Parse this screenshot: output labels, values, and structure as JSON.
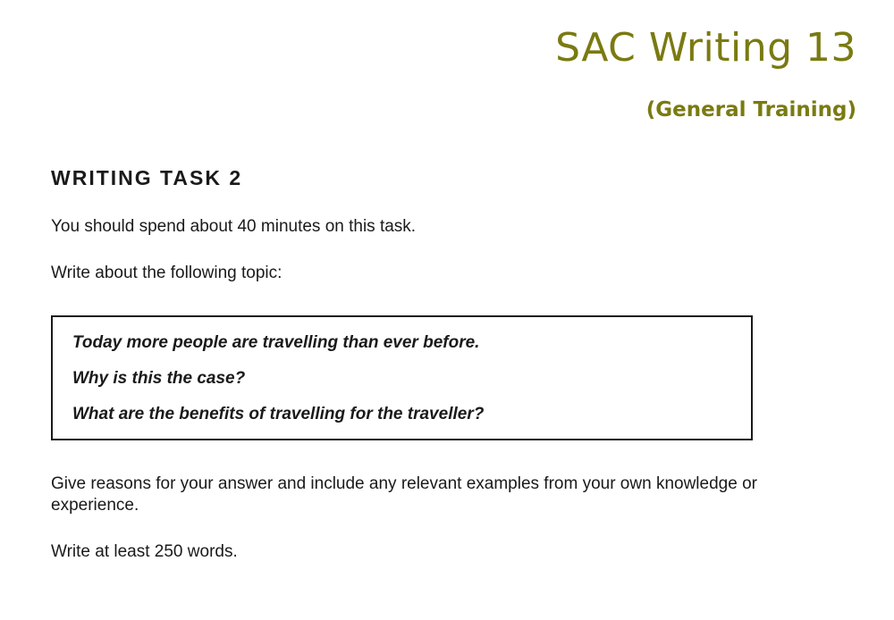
{
  "header": {
    "title": "SAC Writing 13",
    "subtitle": "(General Training)"
  },
  "task": {
    "heading": "WRITING TASK 2",
    "time_instruction": "You should spend about 40 minutes on this task.",
    "topic_intro": "Write about the following topic:",
    "topic_lines": [
      "Today more people are travelling than ever before.",
      "Why is this the case?",
      "What are the benefits of travelling for the traveller?"
    ],
    "reasons_instruction": "Give reasons for your answer and include any relevant examples from your own knowledge or experience.",
    "word_count_instruction": "Write at least 250 words."
  },
  "colors": {
    "title": "#7a7a12",
    "text": "#1a1a1a",
    "background": "#ffffff"
  }
}
